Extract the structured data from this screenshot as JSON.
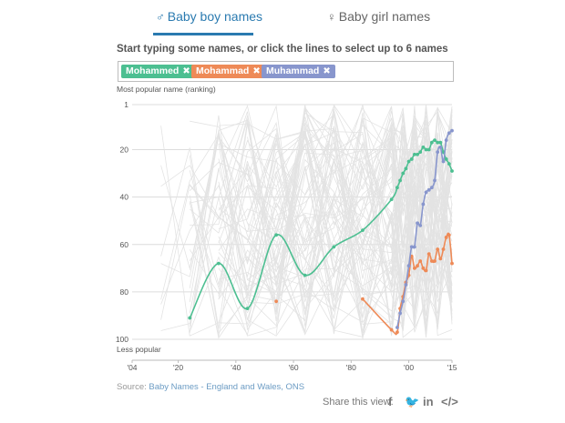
{
  "tabs": {
    "boy_symbol": "♂",
    "boy_label": "Baby boy names",
    "girl_symbol": "♀",
    "girl_label": "Baby girl names"
  },
  "instructions": "Start typing some names, or click the lines to select up to 6 names",
  "chips": [
    {
      "label": "Mohammed",
      "color": "#4cbf91"
    },
    {
      "label": "Mohammad",
      "color": "#ee8a57"
    },
    {
      "label": "Muhammad",
      "color": "#8896cd"
    }
  ],
  "chip_remove_glyph": "✖",
  "chart_data": {
    "type": "line",
    "ylabel": "Most popular name (ranking)",
    "ylabel_bottom": "Less popular",
    "y_reversed": true,
    "ylim": [
      1,
      100
    ],
    "yticks": [
      "1",
      "20",
      "40",
      "60",
      "80",
      "100"
    ],
    "yticks_values": [
      1,
      20,
      40,
      60,
      80,
      100
    ],
    "xlim": [
      1904,
      2015
    ],
    "xticks": [
      "'04",
      "'20",
      "'40",
      "'60",
      "'80",
      "'00",
      "'15"
    ],
    "xticks_values": [
      1904,
      1920,
      1940,
      1960,
      1980,
      2000,
      2015
    ],
    "grid": true,
    "background_lines": "many grey lines for other names (not individually labelled)",
    "series": [
      {
        "name": "Mohammed",
        "color": "#4cbf91",
        "segments": [
          [
            [
              1924,
              91
            ],
            [
              1934,
              68
            ],
            [
              1944,
              87
            ],
            [
              1954,
              56
            ],
            [
              1964,
              73
            ],
            [
              1974,
              61
            ],
            [
              1984,
              54
            ],
            [
              1994,
              41
            ],
            [
              1996,
              36
            ],
            [
              1997,
              33
            ],
            [
              1998,
              30
            ],
            [
              1999,
              28
            ],
            [
              2000,
              25
            ],
            [
              2001,
              24
            ],
            [
              2002,
              22
            ],
            [
              2003,
              22
            ],
            [
              2004,
              21
            ],
            [
              2005,
              19
            ],
            [
              2006,
              20
            ],
            [
              2007,
              20
            ],
            [
              2008,
              17
            ],
            [
              2009,
              16
            ],
            [
              2010,
              17
            ],
            [
              2011,
              17
            ],
            [
              2012,
              21
            ],
            [
              2013,
              24
            ],
            [
              2014,
              26
            ],
            [
              2015,
              29
            ]
          ]
        ]
      },
      {
        "name": "Mohammad",
        "color": "#ee8a57",
        "segments": [
          [
            [
              1954,
              84
            ]
          ],
          [
            [
              1984,
              83
            ],
            [
              1994,
              96
            ],
            [
              1996,
              97
            ],
            [
              1997,
              87
            ],
            [
              1998,
              82
            ],
            [
              1999,
              76
            ],
            [
              2000,
              73
            ],
            [
              2001,
              65
            ],
            [
              2002,
              70
            ],
            [
              2003,
              69
            ],
            [
              2004,
              67
            ],
            [
              2005,
              70
            ],
            [
              2006,
              71
            ],
            [
              2007,
              64
            ],
            [
              2008,
              67
            ],
            [
              2009,
              67
            ],
            [
              2010,
              62
            ],
            [
              2011,
              66
            ],
            [
              2012,
              62
            ],
            [
              2013,
              57
            ],
            [
              2014,
              56
            ],
            [
              2015,
              68
            ]
          ]
        ]
      },
      {
        "name": "Muhammad",
        "color": "#8896cd",
        "segments": [
          [
            [
              1996,
              95
            ],
            [
              1997,
              89
            ],
            [
              1998,
              84
            ],
            [
              1999,
              77
            ],
            [
              2000,
              69
            ],
            [
              2001,
              61
            ],
            [
              2002,
              61
            ],
            [
              2003,
              51
            ],
            [
              2004,
              52
            ],
            [
              2005,
              43
            ],
            [
              2006,
              38
            ],
            [
              2007,
              37
            ],
            [
              2008,
              36
            ],
            [
              2009,
              33
            ],
            [
              2010,
              21
            ],
            [
              2011,
              19
            ],
            [
              2012,
              25
            ],
            [
              2013,
              16
            ],
            [
              2014,
              13
            ],
            [
              2015,
              12
            ]
          ]
        ]
      }
    ]
  },
  "source": {
    "prefix": "Source: ",
    "link": "Baby Names - England and Wales, ONS"
  },
  "share": {
    "label": "Share this view:",
    "icons": [
      "facebook-icon",
      "twitter-icon",
      "linkedin-icon",
      "embed-code-icon"
    ],
    "glyphs": [
      "f",
      "🐦",
      "in",
      "</>"
    ]
  }
}
